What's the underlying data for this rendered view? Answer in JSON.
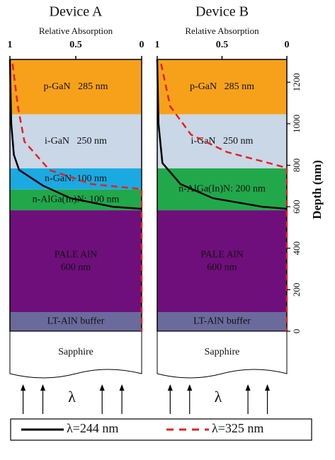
{
  "chart_data": [
    {
      "type": "layer-profile",
      "title": "Device A",
      "xlabel": "Relative Absorption",
      "xlim": [
        1,
        0
      ],
      "xticks": [
        1,
        0.5,
        0
      ],
      "ylim": [
        0,
        1310
      ],
      "layers": [
        {
          "label": [
            "p-GaN   285 nm"
          ],
          "color": "#f7a11b",
          "text_color": "#222",
          "depth": [
            1045,
            1310
          ]
        },
        {
          "label": [
            "i-GaN   250 nm"
          ],
          "color": "#c9d7e7",
          "text_color": "#222",
          "depth": [
            785,
            1045
          ]
        },
        {
          "label": [
            "n-GaN: 100 nm"
          ],
          "color": "#1ba9e2",
          "text_color": "#222",
          "depth": [
            683,
            785
          ]
        },
        {
          "label": [
            "n-AlGa(In)N: 100 nm"
          ],
          "color": "#21a84b",
          "text_color": "#222",
          "depth": [
            583,
            683
          ]
        },
        {
          "label": [
            "PALE AlN",
            "600 nm"
          ],
          "color": "#6f0f7b",
          "text_color": "#2a0a40",
          "depth": [
            92,
            583
          ]
        },
        {
          "label": [
            "LT-AlN buffer"
          ],
          "color": "#6b6a9d",
          "text_color": "#111",
          "depth": [
            0,
            92
          ]
        }
      ],
      "substrate": "Sapphire",
      "incident_label": "λ",
      "series": [
        {
          "name": "λ=244 nm",
          "color": "#000000",
          "dash": false,
          "x": [
            1,
            0.99,
            0.97,
            0.93,
            0.75,
            0.54,
            0.22,
            0
          ],
          "values": [
            1310,
            1000,
            850,
            777,
            702,
            641,
            600,
            590
          ]
        },
        {
          "name": "λ=325 nm",
          "color": "#e8201c",
          "dash": true,
          "x": [
            0.98,
            0.94,
            0.89,
            0.7,
            0.38,
            0,
            0
          ],
          "values": [
            1289,
            1084,
            914,
            777,
            709,
            685,
            0
          ]
        }
      ]
    },
    {
      "type": "layer-profile",
      "title": "Device B",
      "xlabel": "Relative Absorption",
      "xlim": [
        1,
        0
      ],
      "xticks": [
        1,
        0.5,
        0
      ],
      "ylim": [
        0,
        1310
      ],
      "yticks": [
        0,
        200,
        400,
        600,
        800,
        1000,
        1200
      ],
      "ylabel": "Depth (nm)",
      "layers": [
        {
          "label": [
            "p-GaN   285 nm"
          ],
          "color": "#f7a11b",
          "text_color": "#222",
          "depth": [
            1045,
            1310
          ]
        },
        {
          "label": [
            "i-GaN   250 nm"
          ],
          "color": "#c9d7e7",
          "text_color": "#222",
          "depth": [
            785,
            1045
          ]
        },
        {
          "label": [
            "n-AlGa(In)N: 200 nm"
          ],
          "color": "#21a84b",
          "text_color": "#222",
          "depth": [
            583,
            785
          ]
        },
        {
          "label": [
            "PALE AlN",
            "600 nm"
          ],
          "color": "#6f0f7b",
          "text_color": "#2a0a40",
          "depth": [
            92,
            583
          ]
        },
        {
          "label": [
            "LT-AlN buffer"
          ],
          "color": "#6b6a9d",
          "text_color": "#111",
          "depth": [
            0,
            92
          ]
        }
      ],
      "substrate": "Sapphire",
      "incident_label": "λ",
      "series": [
        {
          "name": "λ=244 nm",
          "color": "#000000",
          "dash": false,
          "x": [
            1,
            0.99,
            0.96,
            0.82,
            0.57,
            0.19,
            0
          ],
          "values": [
            1310,
            1000,
            811,
            709,
            641,
            600,
            590
          ]
        },
        {
          "name": "λ=325 nm",
          "color": "#e8201c",
          "dash": true,
          "x": [
            0.97,
            0.9,
            0.74,
            0.46,
            0.14,
            0,
            0
          ],
          "values": [
            1289,
            1084,
            948,
            863,
            811,
            787,
            0
          ]
        }
      ]
    }
  ]
}
